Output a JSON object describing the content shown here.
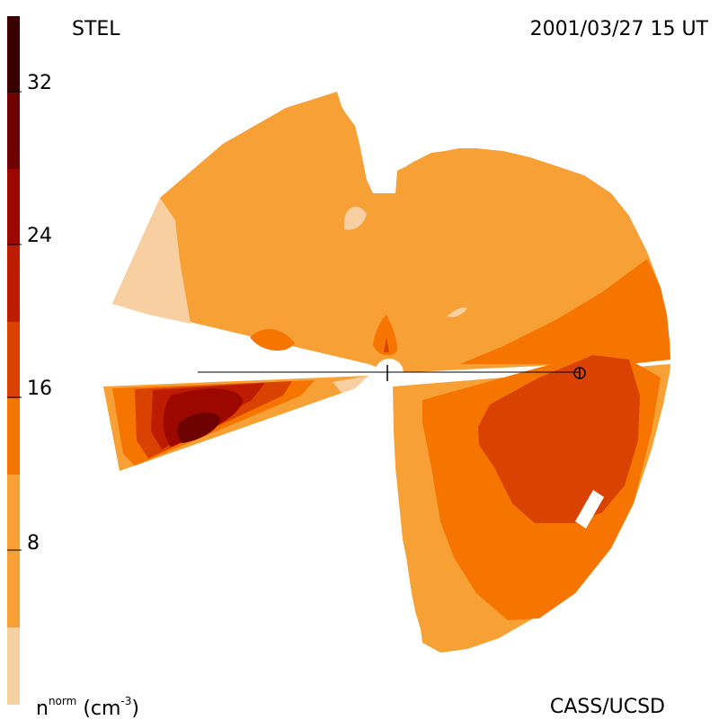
{
  "header": {
    "left_label": "STEL",
    "right_label": "2001/03/27 15 UT"
  },
  "footer": {
    "credit": "CASS/UCSD",
    "unit_base": "n",
    "unit_sup": "norm",
    "unit_text": "(cm",
    "unit_exp": "-3",
    "unit_close": ")"
  },
  "colorbar": {
    "ticks": [
      {
        "value": 32,
        "label": "32"
      },
      {
        "value": 24,
        "label": "24"
      },
      {
        "value": 16,
        "label": "16"
      },
      {
        "value": 8,
        "label": "8"
      }
    ],
    "colors": [
      "#f8cfa0",
      "#f7a035",
      "#f67400",
      "#d94200",
      "#bd1c00",
      "#9c0800",
      "#6e0200",
      "#3a0000"
    ]
  }
}
